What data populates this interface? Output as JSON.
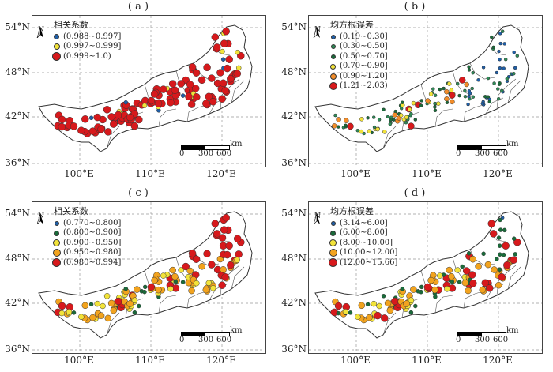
{
  "axes": {
    "lat_labels": [
      "54°N",
      "48°N",
      "42°N",
      "36°N"
    ],
    "lon_labels": [
      "100°E",
      "110°E",
      "120°E"
    ]
  },
  "north_arrow": {
    "letter": "N"
  },
  "scale_bar": {
    "unit": "km",
    "ticks": [
      "0",
      "300",
      "600"
    ]
  },
  "panels": [
    {
      "label": "( a )",
      "legend_title": "相关系数",
      "classes": [
        {
          "label": "(0.988~0.997]",
          "color": "#1f5fa8"
        },
        {
          "label": "(0.997~0.999]",
          "color": "#f2e33a"
        },
        {
          "label": "(0.999~1.0)",
          "color": "#d7191c"
        }
      ]
    },
    {
      "label": "( b )",
      "legend_title": "均方根误差",
      "classes": [
        {
          "label": "(0.19~0.30]",
          "color": "#1f5fa8"
        },
        {
          "label": "(0.30~0.50]",
          "color": "#2e8b57"
        },
        {
          "label": "(0.50~0.70]",
          "color": "#1a6b3a"
        },
        {
          "label": "(0.70~0.90]",
          "color": "#f2e33a"
        },
        {
          "label": "(0.90~1.20]",
          "color": "#f28c28"
        },
        {
          "label": "(1.21~2.03)",
          "color": "#d7191c"
        }
      ]
    },
    {
      "label": "( c )",
      "legend_title": "相关系数",
      "classes": [
        {
          "label": "(0.770~0.800]",
          "color": "#1f5fa8"
        },
        {
          "label": "(0.800~0.900]",
          "color": "#1a6b3a"
        },
        {
          "label": "(0.900~0.950]",
          "color": "#f2e33a"
        },
        {
          "label": "(0.950~0.980]",
          "color": "#f2a31e"
        },
        {
          "label": "(0.980~0.994]",
          "color": "#d7191c"
        }
      ]
    },
    {
      "label": "( d )",
      "legend_title": "均方根误差",
      "classes": [
        {
          "label": "(3.14~6.00]",
          "color": "#1f5fa8"
        },
        {
          "label": "(6.00~8.00]",
          "color": "#1a6b3a"
        },
        {
          "label": "(8.00~10.00]",
          "color": "#f2e33a"
        },
        {
          "label": "(10.00~12.00]",
          "color": "#f2a31e"
        },
        {
          "label": "(12.00~15.66]",
          "color": "#d7191c"
        }
      ]
    }
  ]
}
